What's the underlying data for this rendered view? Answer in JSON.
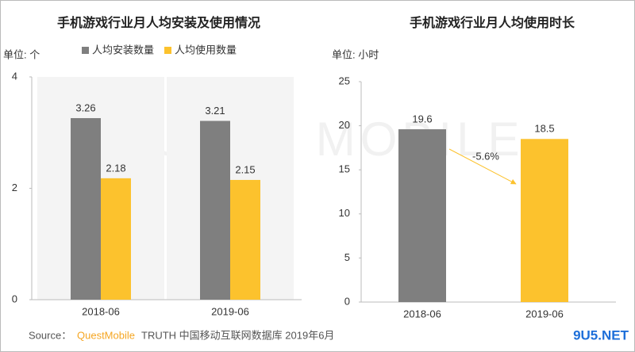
{
  "chart_data": [
    {
      "type": "bar",
      "title": "手机游戏行业月人均安装及使用情况",
      "unit_label": "单位: 个",
      "categories": [
        "2018-06",
        "2019-06"
      ],
      "series": [
        {
          "name": "人均安装数量",
          "color": "#7f7f7f",
          "values": [
            3.26,
            3.21
          ]
        },
        {
          "name": "人均使用数量",
          "color": "#fcc22d",
          "values": [
            2.18,
            2.15
          ]
        }
      ],
      "ylim": [
        0,
        4
      ],
      "yticks": [
        0,
        2,
        4
      ],
      "legend": "top"
    },
    {
      "type": "bar",
      "title": "手机游戏行业月人均使用时长",
      "unit_label": "单位: 小时",
      "categories": [
        "2018-06",
        "2019-06"
      ],
      "values": [
        19.6,
        18.5
      ],
      "colors": [
        "#7f7f7f",
        "#fcc22d"
      ],
      "ylim": [
        0,
        25
      ],
      "yticks": [
        0,
        5,
        10,
        15,
        20,
        25
      ],
      "annotation": "-5.6%"
    }
  ],
  "watermark": "QUEST MOBILE",
  "source": {
    "prefix": "Source：",
    "brand": "QuestMobile",
    "text": "TRUTH 中国移动互联网数据库 2019年6月"
  },
  "site": "9U5.NET"
}
